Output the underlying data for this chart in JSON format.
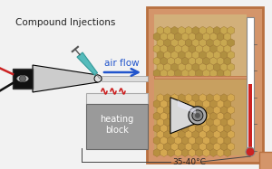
{
  "bg_color": "#f2f2f2",
  "label_compound": "Compound Injections",
  "label_airflow": "air flow",
  "label_heating": "heating\nblock",
  "label_temp": "35-40°C",
  "airflow_arrow_color": "#2255cc",
  "heat_color": "#cc2222",
  "wood_color": "#d4956a",
  "wood_dark": "#b87040",
  "heating_block_color": "#9a9a9a",
  "heating_block_top": "#e8e8e8",
  "syringe_color": "#55bbbb",
  "white": "#ffffff",
  "black": "#000000",
  "text_color": "#222222",
  "fig_width": 3.0,
  "fig_height": 1.87,
  "dpi": 100
}
